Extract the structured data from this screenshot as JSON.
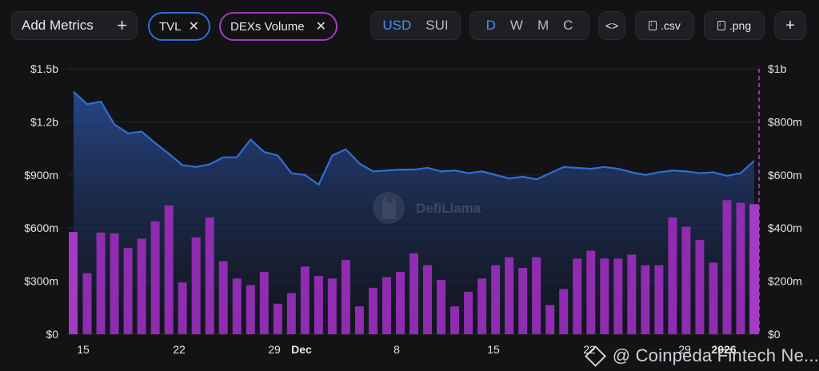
{
  "toolbar": {
    "add_metrics": "Add Metrics",
    "plus": "+",
    "close": "✕",
    "metrics": [
      {
        "label": "TVL",
        "color": "#2f6ed8"
      },
      {
        "label": "DEXs Volume",
        "color": "#a43cc0"
      }
    ],
    "currency": [
      "USD",
      "SUI"
    ],
    "currency_active": "USD",
    "periods": [
      "D",
      "W",
      "M",
      "C"
    ],
    "period_active": "D",
    "embed": "<>",
    "csv": ".csv",
    "png": ".png"
  },
  "watermark": "DefiLlama",
  "credit": "@ Coinpeda Fintech Ne...",
  "chart_data": {
    "type": "bar",
    "x_ticks": [
      "15",
      "22",
      "29",
      "Dec",
      "8",
      "15",
      "22",
      "29",
      "2026"
    ],
    "left_axis": {
      "ticks": [
        "$0",
        "$300m",
        "$600m",
        "$900m",
        "$1.2b",
        "$1.5b"
      ],
      "ylim": [
        0,
        1500000000
      ]
    },
    "right_axis": {
      "ticks": [
        "$0",
        "$200m",
        "$400m",
        "$600m",
        "$800m",
        "$1b"
      ],
      "ylim": [
        0,
        1000000000
      ]
    },
    "series": [
      {
        "name": "TVL",
        "type": "area",
        "color": "#2f6ed8",
        "axis": "left",
        "values": [
          1370,
          1300,
          1315,
          1185,
          1135,
          1145,
          1080,
          1020,
          955,
          945,
          960,
          1000,
          1000,
          1100,
          1030,
          1010,
          910,
          900,
          845,
          1010,
          1045,
          965,
          920,
          925,
          930,
          930,
          940,
          920,
          925,
          910,
          920,
          900,
          880,
          890,
          875,
          910,
          945,
          940,
          935,
          945,
          935,
          915,
          900,
          915,
          925,
          920,
          910,
          915,
          895,
          910,
          980
        ]
      },
      {
        "name": "DEXs Volume",
        "type": "bar",
        "color": "#8f2cb0",
        "axis": "right",
        "values": [
          385,
          230,
          383,
          380,
          325,
          360,
          425,
          485,
          195,
          365,
          440,
          275,
          210,
          185,
          235,
          115,
          155,
          255,
          220,
          210,
          280,
          105,
          175,
          215,
          235,
          305,
          260,
          205,
          105,
          160,
          210,
          260,
          290,
          250,
          290,
          110,
          170,
          285,
          315,
          285,
          285,
          300,
          260,
          260,
          440,
          405,
          355,
          270,
          505,
          495,
          490
        ]
      }
    ]
  }
}
